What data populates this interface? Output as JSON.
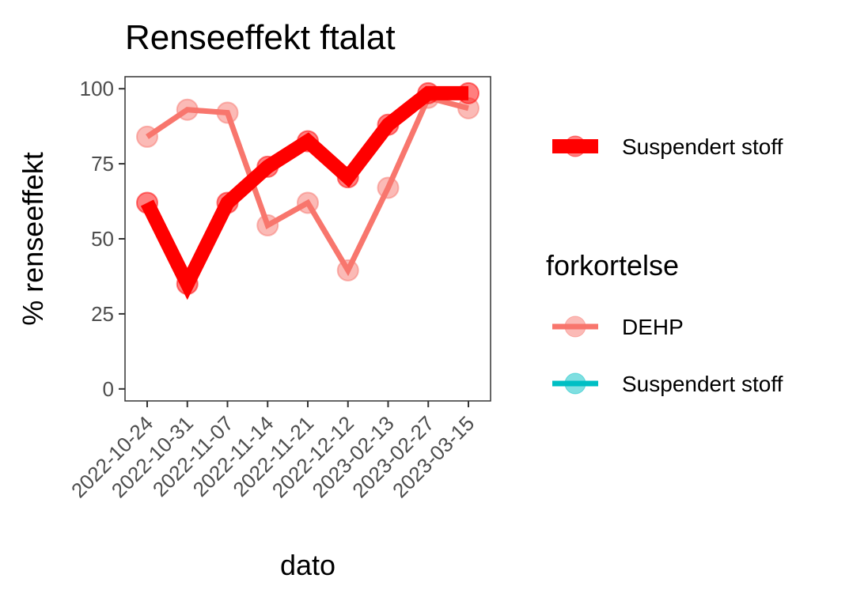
{
  "chart_data": {
    "type": "line",
    "title": "Renseeffekt ftalat",
    "xlabel": "dato",
    "ylabel": "% renseeffekt",
    "categories": [
      "2022-10-24",
      "2022-10-31",
      "2022-11-07",
      "2022-11-14",
      "2022-11-21",
      "2022-12-12",
      "2023-02-13",
      "2023-02-27",
      "2023-03-15"
    ],
    "ylim": [
      -4,
      104
    ],
    "yticks": [
      0,
      25,
      50,
      75,
      100
    ],
    "grid": false,
    "legend_position": "right",
    "series": [
      {
        "name": "DEHP",
        "color": "#F8766D",
        "values": [
          84,
          93,
          92,
          54.5,
          62,
          39.5,
          67,
          97,
          93.5
        ]
      },
      {
        "name": "Suspendert stoff",
        "color": "#FF0000",
        "values": [
          62,
          35,
          62,
          74,
          82.5,
          70.5,
          88,
          98.5,
          98.5
        ]
      }
    ],
    "legend": {
      "top_entry": {
        "label": "Suspendert stoff",
        "color": "#FF0000"
      },
      "title": "forkortelse",
      "entries": [
        {
          "label": "DEHP",
          "color": "#F8766D"
        },
        {
          "label": "Suspendert stoff",
          "color": "#00BFC4"
        }
      ]
    }
  }
}
